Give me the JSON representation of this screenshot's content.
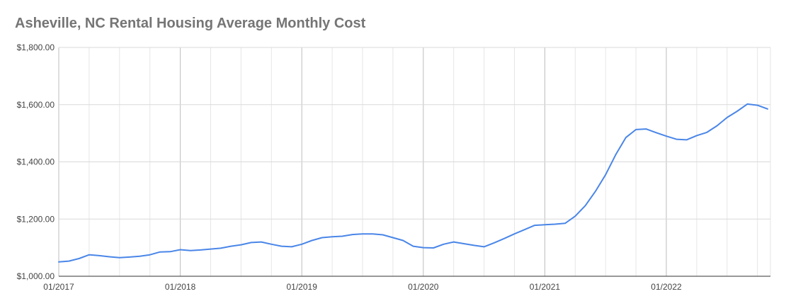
{
  "chart_data": {
    "type": "line",
    "title": "Asheville, NC Rental Housing Average Monthly Cost",
    "xlabel": "",
    "ylabel": "",
    "ylim": [
      1000,
      1800
    ],
    "y_ticks": [
      "$1,000.00",
      "$1,200.00",
      "$1,400.00",
      "$1,600.00",
      "$1,800.00"
    ],
    "x_ticks": [
      "01/2017",
      "01/2018",
      "01/2019",
      "01/2020",
      "01/2021",
      "01/2022"
    ],
    "grid": true,
    "legend": "none",
    "line_color": "#4a86e8",
    "x": [
      "01/2017",
      "02/2017",
      "03/2017",
      "04/2017",
      "05/2017",
      "06/2017",
      "07/2017",
      "08/2017",
      "09/2017",
      "10/2017",
      "11/2017",
      "12/2017",
      "01/2018",
      "02/2018",
      "03/2018",
      "04/2018",
      "05/2018",
      "06/2018",
      "07/2018",
      "08/2018",
      "09/2018",
      "10/2018",
      "11/2018",
      "12/2018",
      "01/2019",
      "02/2019",
      "03/2019",
      "04/2019",
      "05/2019",
      "06/2019",
      "07/2019",
      "08/2019",
      "09/2019",
      "10/2019",
      "11/2019",
      "12/2019",
      "01/2020",
      "02/2020",
      "03/2020",
      "04/2020",
      "05/2020",
      "06/2020",
      "07/2020",
      "08/2020",
      "09/2020",
      "10/2020",
      "11/2020",
      "12/2020",
      "01/2021",
      "02/2021",
      "03/2021",
      "04/2021",
      "05/2021",
      "06/2021",
      "07/2021",
      "08/2021",
      "09/2021",
      "10/2021",
      "11/2021",
      "12/2021",
      "01/2022",
      "02/2022",
      "03/2022",
      "04/2022",
      "05/2022",
      "06/2022",
      "07/2022",
      "08/2022",
      "09/2022",
      "10/2022",
      "11/2022"
    ],
    "series": [
      {
        "values": [
          1050,
          1053,
          1062,
          1075,
          1072,
          1068,
          1065,
          1067,
          1070,
          1075,
          1085,
          1086,
          1093,
          1090,
          1092,
          1095,
          1098,
          1105,
          1110,
          1118,
          1120,
          1112,
          1105,
          1103,
          1112,
          1125,
          1135,
          1138,
          1140,
          1146,
          1148,
          1148,
          1145,
          1135,
          1125,
          1105,
          1100,
          1099,
          1112,
          1120,
          1114,
          1108,
          1103,
          1117,
          1132,
          1148,
          1163,
          1178,
          1180,
          1182,
          1185,
          1210,
          1247,
          1297,
          1355,
          1425,
          1485,
          1513,
          1515,
          1502,
          1490,
          1479,
          1477,
          1492,
          1503,
          1526,
          1555,
          1577,
          1602,
          1598,
          1585
        ]
      }
    ]
  }
}
